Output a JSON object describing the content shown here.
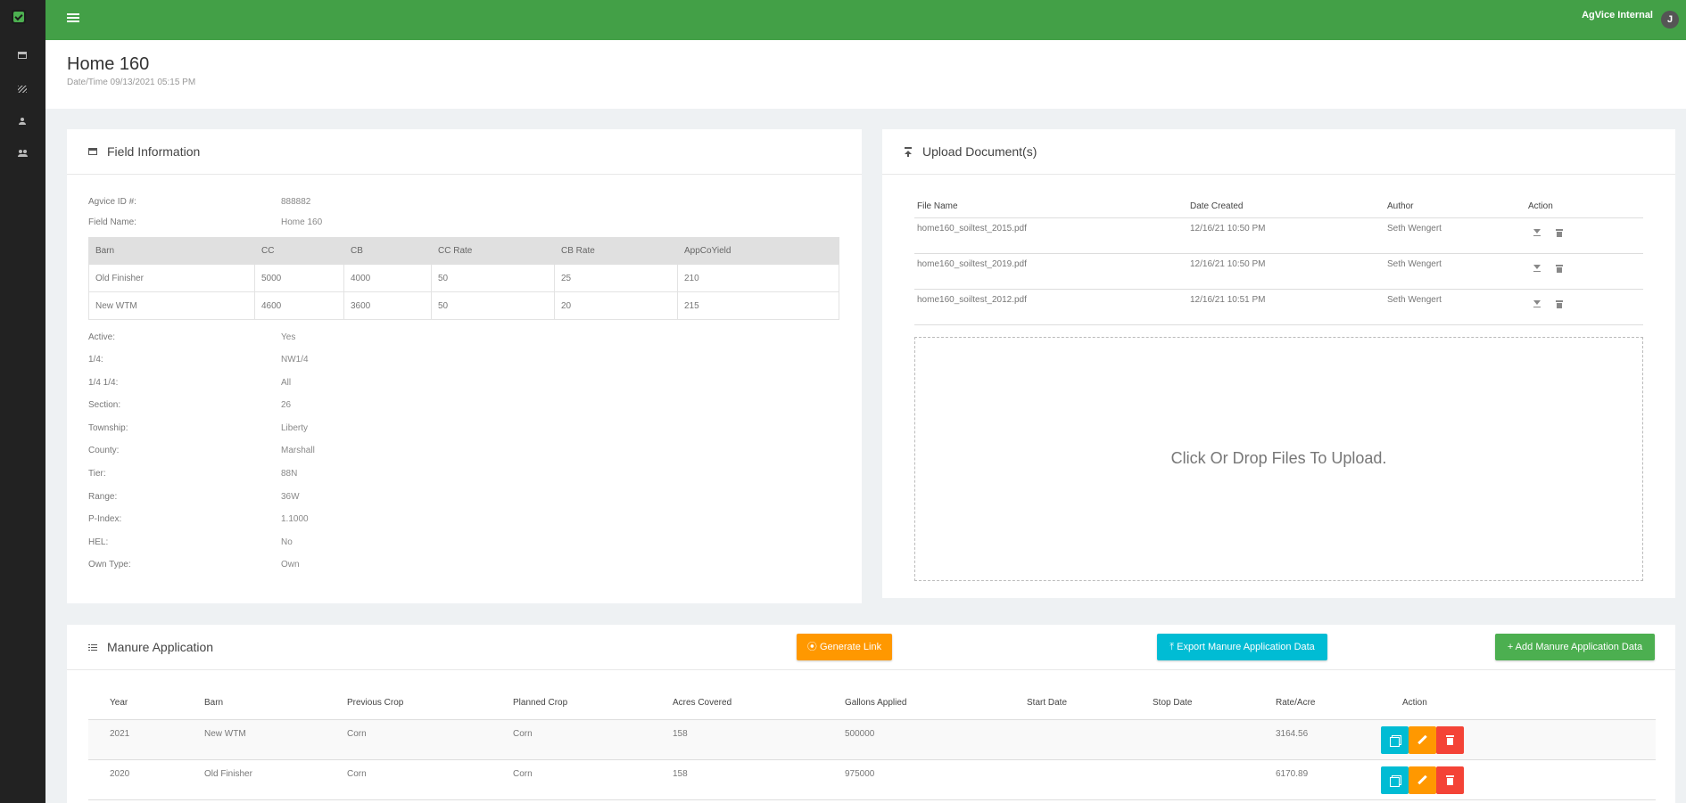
{
  "topbar": {
    "brand": "AgVice Internal",
    "avatar_initial": "J"
  },
  "sidebar": {
    "items": [
      {
        "icon": "store-icon"
      },
      {
        "icon": "pattern-icon"
      },
      {
        "icon": "person-icon"
      },
      {
        "icon": "people-icon"
      }
    ]
  },
  "header": {
    "title": "Home 160",
    "datetime": "Date/Time 09/13/2021 05:15 PM"
  },
  "field_info": {
    "title": "Field Information",
    "agvice_id_label": "Agvice ID #:",
    "agvice_id": "888882",
    "field_name_label": "Field Name:",
    "field_name": "Home 160",
    "barn_columns": [
      "Barn",
      "CC",
      "CB",
      "CC Rate",
      "CB Rate",
      "AppCoYield"
    ],
    "barns": [
      [
        "Old Finisher",
        "5000",
        "4000",
        "50",
        "25",
        "210"
      ],
      [
        "New WTM",
        "4600",
        "3600",
        "50",
        "20",
        "215"
      ]
    ],
    "details": [
      {
        "label": "Active:",
        "value": "Yes"
      },
      {
        "label": "1/4:",
        "value": "NW1/4"
      },
      {
        "label": "1/4 1/4:",
        "value": "All"
      },
      {
        "label": "Section:",
        "value": "26"
      },
      {
        "label": "Township:",
        "value": "Liberty"
      },
      {
        "label": "County:",
        "value": "Marshall"
      },
      {
        "label": "Tier:",
        "value": "88N"
      },
      {
        "label": "Range:",
        "value": "36W"
      },
      {
        "label": "P-Index:",
        "value": "1.1000"
      },
      {
        "label": "HEL:",
        "value": "No"
      },
      {
        "label": "Own Type:",
        "value": "Own"
      }
    ]
  },
  "upload": {
    "title": "Upload Document(s)",
    "columns": [
      "File Name",
      "Date Created",
      "Author",
      "Action"
    ],
    "files": [
      {
        "name": "home160_soiltest_2015.pdf",
        "date": "12/16/21 10:50 PM",
        "author": "Seth Wengert"
      },
      {
        "name": "home160_soiltest_2019.pdf",
        "date": "12/16/21 10:50 PM",
        "author": "Seth Wengert"
      },
      {
        "name": "home160_soiltest_2012.pdf",
        "date": "12/16/21 10:51 PM",
        "author": "Seth Wengert"
      }
    ],
    "dropzone_text": "Click Or Drop Files To Upload."
  },
  "manure": {
    "title": "Manure Application",
    "generate_link_label": "⦿ Generate Link",
    "export_label": "⤒ Export Manure Application Data",
    "add_label": "+ Add Manure Application Data",
    "columns": [
      "Year",
      "Barn",
      "Previous Crop",
      "Planned Crop",
      "Acres Covered",
      "Gallons Applied",
      "Start Date",
      "Stop Date",
      "Rate/Acre",
      "Action"
    ],
    "rows": [
      {
        "year": "2021",
        "barn": "New WTM",
        "prev": "Corn",
        "planned": "Corn",
        "acres": "158",
        "gallons": "500000",
        "start": "",
        "stop": "",
        "rate": "3164.56"
      },
      {
        "year": "2020",
        "barn": "Old Finisher",
        "prev": "Corn",
        "planned": "Corn",
        "acres": "158",
        "gallons": "975000",
        "start": "",
        "stop": "",
        "rate": "6170.89"
      }
    ]
  },
  "colors": {
    "primary": "#43a047",
    "sidebar": "#222222",
    "orange": "#ff9800",
    "cyan": "#00bcd4",
    "red": "#f44336"
  }
}
